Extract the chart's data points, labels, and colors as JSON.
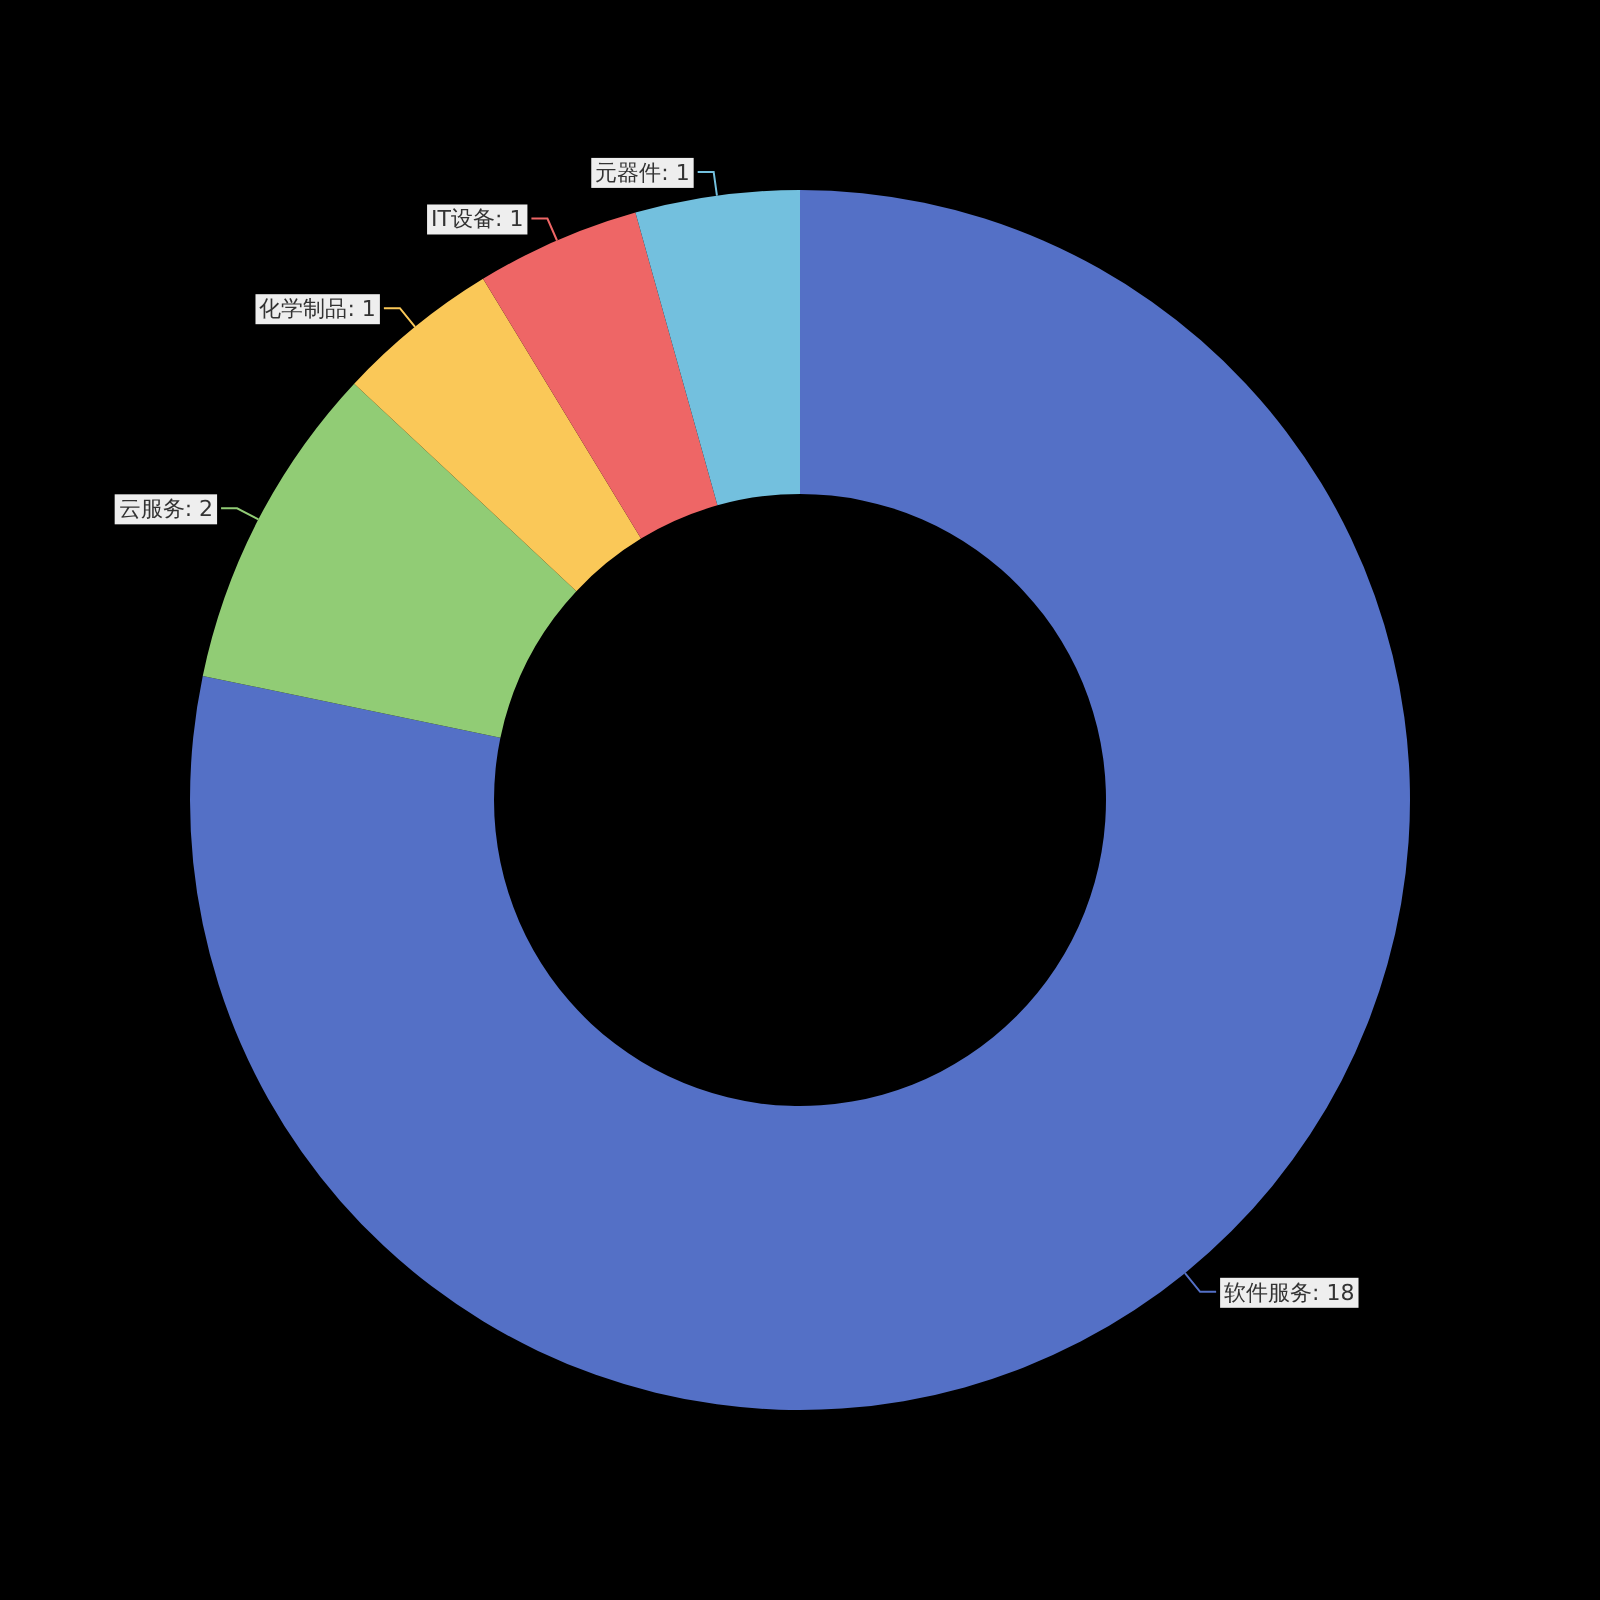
{
  "chart_data": {
    "type": "donut",
    "categories": [
      "软件服务",
      "云服务",
      "化学制品",
      "IT设备",
      "元器件"
    ],
    "values": [
      18,
      2,
      1,
      1,
      1
    ],
    "value_labels": [
      ": 18",
      ": 2",
      ": 1",
      ": 1",
      ": 1"
    ],
    "colors": [
      "#5470c6",
      "#91cc75",
      "#fac858",
      "#ee6666",
      "#73c0de"
    ]
  }
}
